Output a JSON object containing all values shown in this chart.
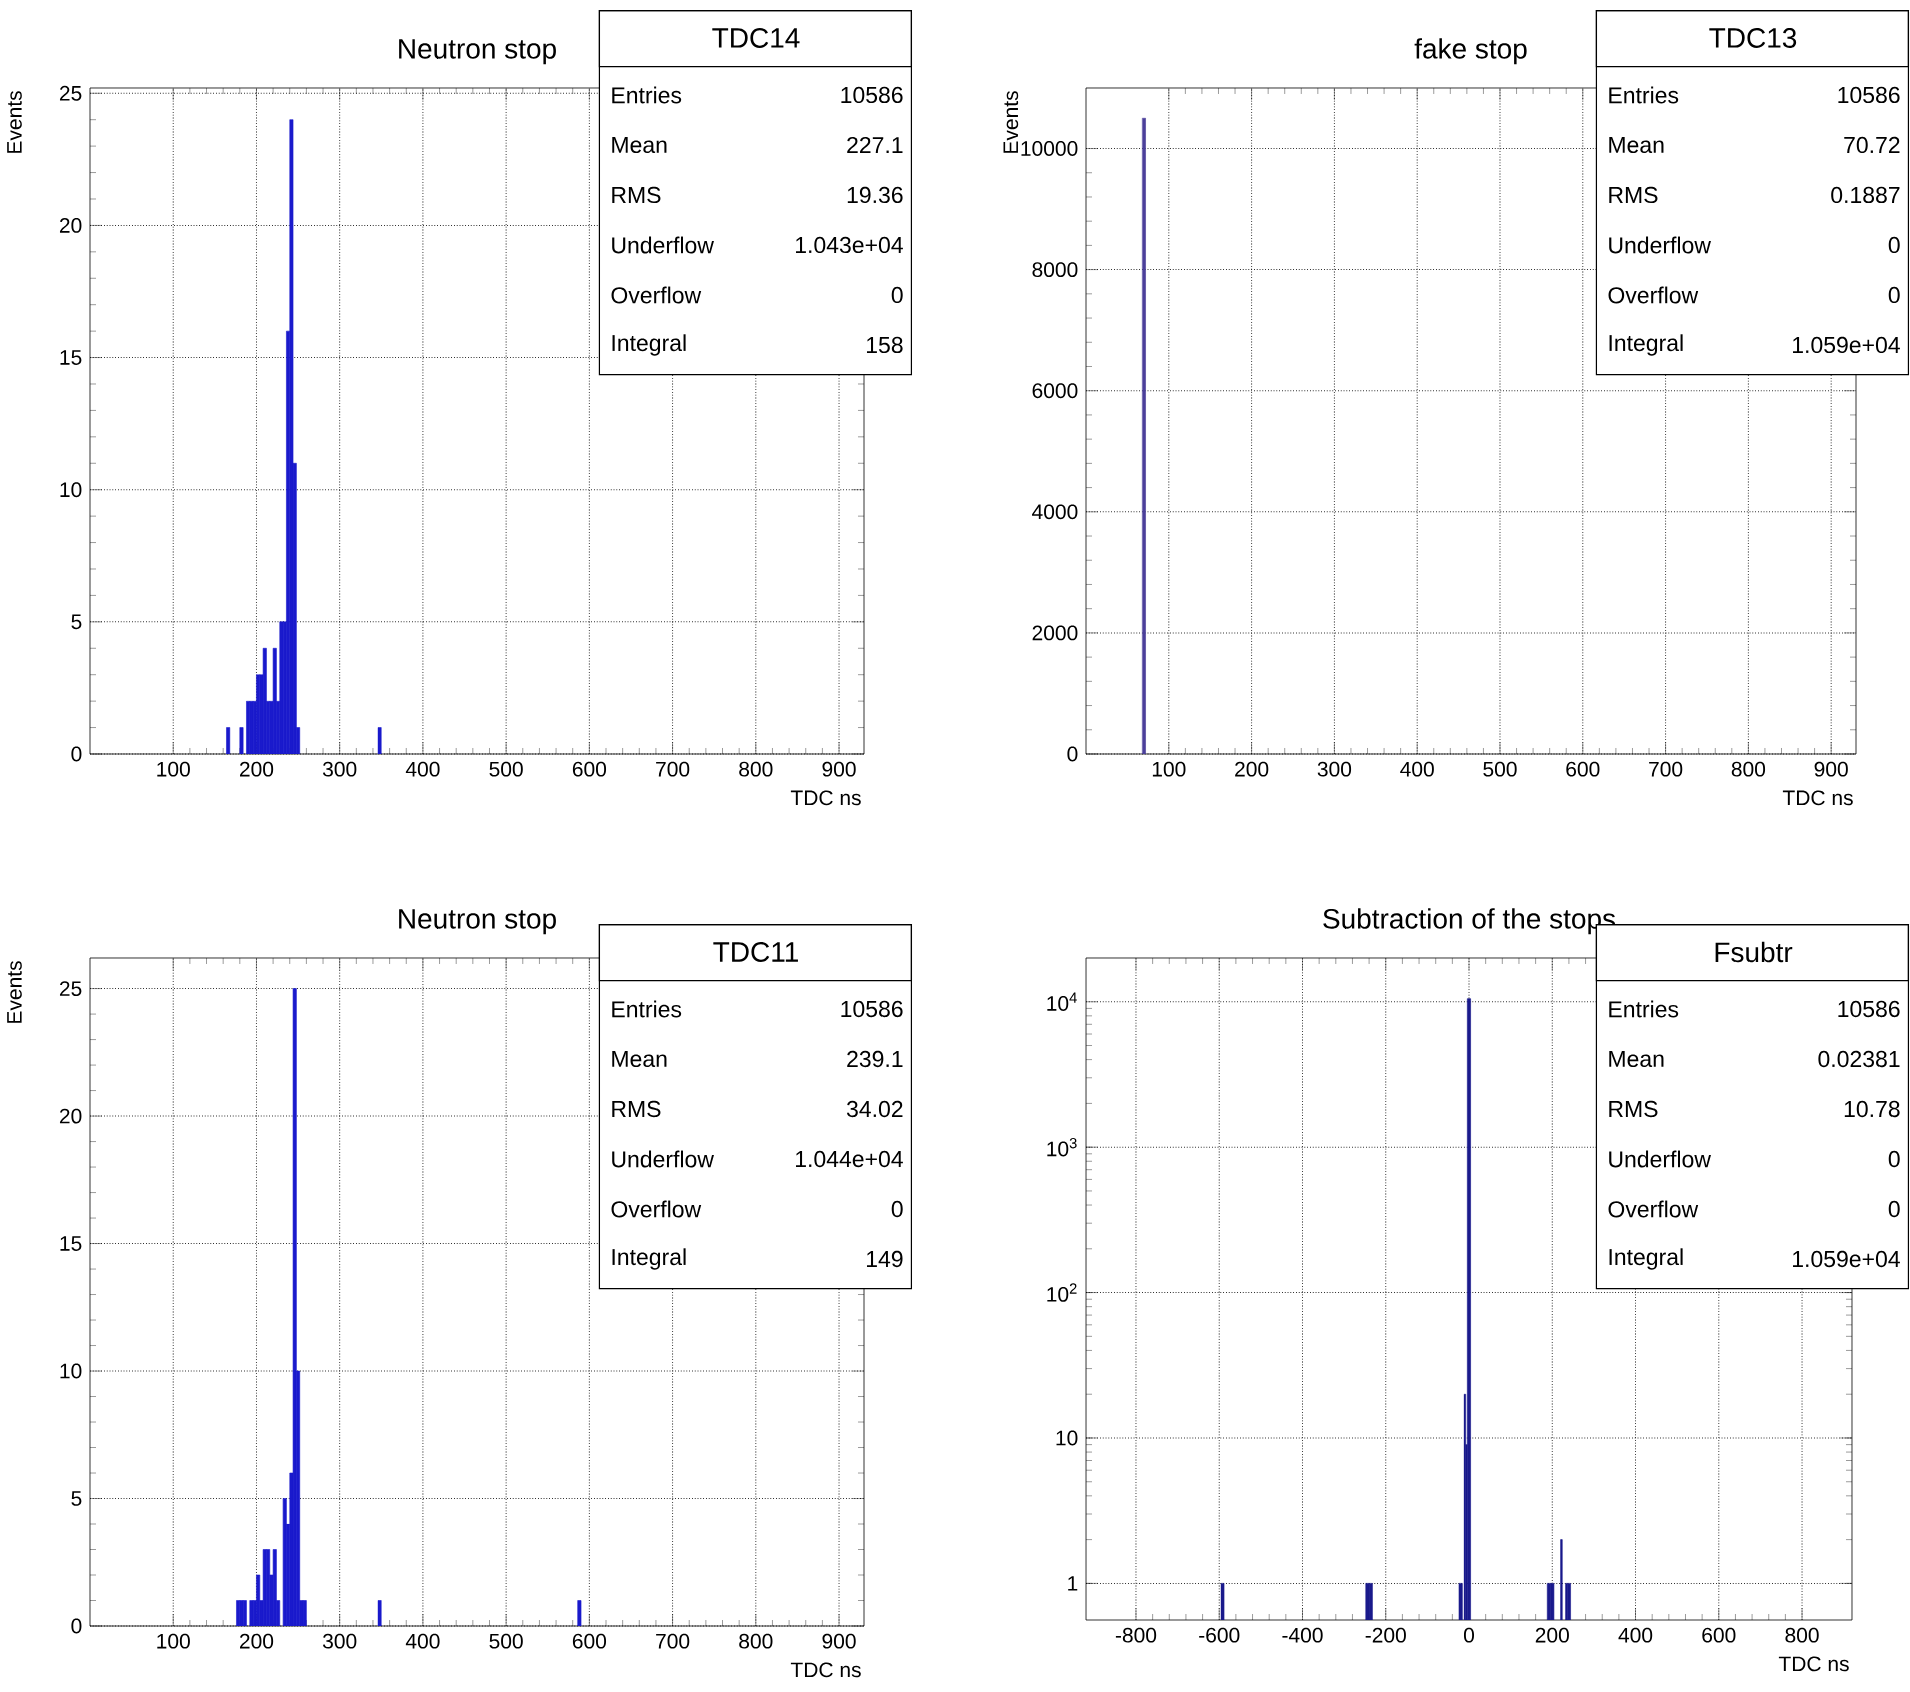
{
  "chart_data": [
    {
      "type": "histogram",
      "title": "Neutron stop",
      "xlabel": "TDC ns",
      "ylabel": "Events",
      "color": "#1a1acc",
      "bins": [
        164,
        168,
        180,
        184,
        188,
        192,
        196,
        200,
        204,
        208,
        212,
        216,
        220,
        224,
        228,
        232,
        236,
        240,
        244,
        248,
        252,
        346,
        350
      ],
      "values": [
        1,
        null,
        1,
        null,
        2,
        2,
        2,
        3,
        3,
        4,
        2,
        2,
        4,
        2,
        5,
        5,
        16,
        24,
        11,
        1,
        null,
        1
      ],
      "xlim": [
        0,
        930
      ],
      "ylim": [
        0,
        25.2
      ],
      "xticks": [
        100,
        200,
        300,
        400,
        500,
        600,
        700,
        800,
        900
      ],
      "yticks": [
        0,
        5,
        10,
        15,
        20,
        25
      ],
      "grid": true,
      "annotations": [
        "TDC14",
        "Entries",
        "10586",
        "Mean",
        "227.1",
        "RMS",
        "19.36",
        "Underflow",
        "1.043e+04",
        "Overflow",
        "0",
        "Integral",
        "158"
      ]
    },
    {
      "type": "histogram",
      "title": "fake stop",
      "xlabel": "TDC ns",
      "ylabel": "Events",
      "color": "#4b3f9a",
      "bins": [
        68,
        72
      ],
      "values": [
        10500
      ],
      "xlim": [
        0,
        930
      ],
      "ylim": [
        0,
        11000
      ],
      "xticks": [
        100,
        200,
        300,
        400,
        500,
        600,
        700,
        800,
        900
      ],
      "yticks": [
        0,
        2000,
        4000,
        6000,
        8000,
        10000
      ],
      "grid": true,
      "annotations": [
        "TDC13",
        "Entries",
        "10586",
        "Mean",
        "70.72",
        "RMS",
        "0.1887",
        "Underflow",
        "0",
        "Overflow",
        "0",
        "Integral",
        "1.059e+04"
      ]
    },
    {
      "type": "histogram",
      "title": "Neutron stop",
      "xlabel": "TDC ns",
      "ylabel": "Events",
      "color": "#1a1acc",
      "bins": [
        176,
        180,
        184,
        188,
        192,
        196,
        200,
        204,
        208,
        212,
        216,
        220,
        224,
        228,
        232,
        236,
        240,
        244,
        248,
        252,
        256,
        260,
        346,
        350,
        586,
        590
      ],
      "values": [
        1,
        1,
        1,
        0,
        1,
        1,
        2,
        1,
        3,
        3,
        2,
        3,
        1,
        0,
        5,
        4,
        6,
        25,
        10,
        1,
        1,
        null,
        1,
        null,
        1
      ],
      "xlim": [
        0,
        930
      ],
      "ylim": [
        0,
        26.2
      ],
      "xticks": [
        100,
        200,
        300,
        400,
        500,
        600,
        700,
        800,
        900
      ],
      "yticks": [
        0,
        5,
        10,
        15,
        20,
        25
      ],
      "grid": true,
      "annotations": [
        "TDC11",
        "Entries",
        "10586",
        "Mean",
        "239.1",
        "RMS",
        "34.02",
        "Underflow",
        "1.044e+04",
        "Overflow",
        "0",
        "Integral",
        "149"
      ]
    },
    {
      "type": "histogram",
      "title": "Subtraction of the stops",
      "xlabel": "TDC ns",
      "color": "#1a1a8c",
      "log": true,
      "bins": [
        -596,
        -588,
        -248,
        -240,
        -232,
        -24,
        -16,
        -12,
        -8,
        -4,
        4,
        188,
        196,
        204,
        220,
        224,
        232,
        236,
        244
      ],
      "values": [
        1,
        null,
        1,
        1,
        null,
        1,
        null,
        20,
        9,
        10500,
        null,
        1,
        1,
        null,
        2,
        null,
        1,
        1
      ],
      "xlim": [
        -920,
        920
      ],
      "ylim": [
        0.56,
        20000
      ],
      "xticks": [
        -800,
        -600,
        -400,
        -200,
        0,
        200,
        400,
        600,
        800
      ],
      "yticks": [
        1,
        10,
        {
          "value": 100,
          "label": "10$^{2}$"
        },
        {
          "value": 1000,
          "label": "10$^{3}$"
        },
        {
          "value": 10000,
          "label": "10$^{4}$"
        }
      ],
      "grid": true,
      "annotations": [
        "Fsubtr",
        "Entries",
        "10586",
        "Mean",
        "0.02381",
        "RMS",
        "10.78",
        "Underflow",
        "0",
        "Overflow",
        "0",
        "Integral",
        "1.059e+04"
      ]
    }
  ]
}
